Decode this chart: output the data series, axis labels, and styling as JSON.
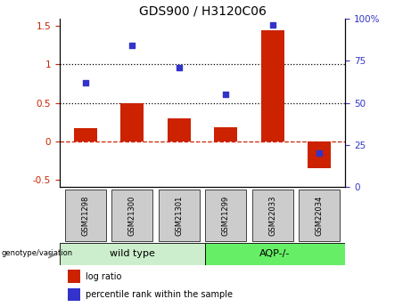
{
  "title": "GDS900 / H3120C06",
  "categories": [
    "GSM21298",
    "GSM21300",
    "GSM21301",
    "GSM21299",
    "GSM22033",
    "GSM22034"
  ],
  "log_ratio": [
    0.17,
    0.5,
    0.3,
    0.18,
    1.45,
    -0.35
  ],
  "percentile_rank": [
    62,
    84,
    71,
    55,
    96,
    20
  ],
  "group1_label": "wild type",
  "group2_label": "AQP-/-",
  "bar_color": "#cc2200",
  "dot_color": "#3333cc",
  "left_ylim": [
    -0.6,
    1.6
  ],
  "right_ylim": [
    0,
    100
  ],
  "left_yticks": [
    -0.5,
    0.0,
    0.5,
    1.0,
    1.5
  ],
  "right_yticks": [
    0,
    25,
    50,
    75,
    100
  ],
  "dotted_lines": [
    0.5,
    1.0
  ],
  "dashed_line": 0.0,
  "group1_color": "#cceecc",
  "group2_color": "#66ee66",
  "label_box_color": "#cccccc",
  "genotype_label": "genotype/variation",
  "legend_log_ratio": "log ratio",
  "legend_percentile": "percentile rank within the sample",
  "title_fontsize": 10,
  "tick_fontsize": 7.5,
  "bar_width": 0.5
}
